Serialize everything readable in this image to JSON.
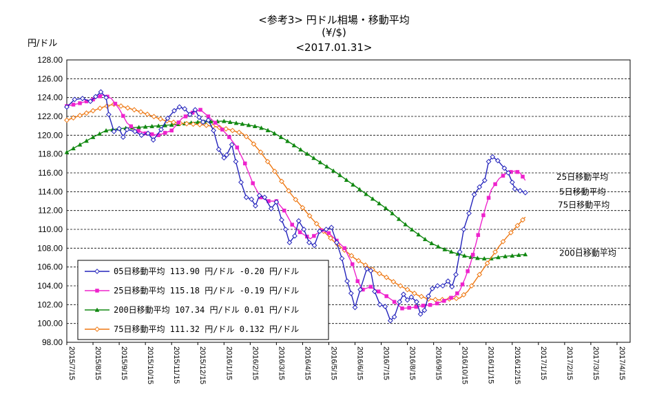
{
  "chart_data": {
    "type": "line",
    "title": "<参考3> 円ドル相場・移動平均",
    "subtitle": "(¥/$)",
    "date": "<2017.01.31>",
    "ylabel": "円/ドル",
    "ylim": [
      98,
      128
    ],
    "yticks": [
      "98.00",
      "100.00",
      "102.00",
      "104.00",
      "106.00",
      "108.00",
      "110.00",
      "112.00",
      "114.00",
      "116.00",
      "118.00",
      "120.00",
      "122.00",
      "124.00",
      "126.00",
      "128.00"
    ],
    "categories": [
      "2015/7/15",
      "2015/8/15",
      "2015/9/15",
      "2015/10/15",
      "2015/11/15",
      "2015/12/15",
      "2016/1/15",
      "2016/2/15",
      "2016/3/15",
      "2016/4/15",
      "2016/5/15",
      "2016/6/15",
      "2016/7/15",
      "2016/8/15",
      "2016/9/15",
      "2016/10/15",
      "2016/11/15",
      "2016/12/15",
      "2017/1/15",
      "2017/2/15",
      "2017/3/15",
      "2017/4/15"
    ],
    "grid": true,
    "series": [
      {
        "name": "5日移動平均",
        "color": "#2222bb",
        "marker": "diamond",
        "points": [
          [
            0,
            123.0
          ],
          [
            0.3,
            123.8
          ],
          [
            0.6,
            123.9
          ],
          [
            0.9,
            123.6
          ],
          [
            1.1,
            124.1
          ],
          [
            1.3,
            124.6
          ],
          [
            1.5,
            124.0
          ],
          [
            1.6,
            122.2
          ],
          [
            1.8,
            120.4
          ],
          [
            2.0,
            120.7
          ],
          [
            2.15,
            119.8
          ],
          [
            2.3,
            120.6
          ],
          [
            2.6,
            120.4
          ],
          [
            2.85,
            120.0
          ],
          [
            3.1,
            120.2
          ],
          [
            3.3,
            119.5
          ],
          [
            3.6,
            120.6
          ],
          [
            3.85,
            121.8
          ],
          [
            4.1,
            122.6
          ],
          [
            4.3,
            123.0
          ],
          [
            4.5,
            122.8
          ],
          [
            4.7,
            122.2
          ],
          [
            4.9,
            122.7
          ],
          [
            5.05,
            121.9
          ],
          [
            5.2,
            121.4
          ],
          [
            5.4,
            121.6
          ],
          [
            5.6,
            120.5
          ],
          [
            5.8,
            118.5
          ],
          [
            6.0,
            117.6
          ],
          [
            6.1,
            117.9
          ],
          [
            6.3,
            119.0
          ],
          [
            6.45,
            117.2
          ],
          [
            6.65,
            115.0
          ],
          [
            6.85,
            113.4
          ],
          [
            7.05,
            113.2
          ],
          [
            7.2,
            112.5
          ],
          [
            7.35,
            113.6
          ],
          [
            7.55,
            113.4
          ],
          [
            7.8,
            112.2
          ],
          [
            8.0,
            112.9
          ],
          [
            8.2,
            111.0
          ],
          [
            8.35,
            110.0
          ],
          [
            8.5,
            108.6
          ],
          [
            8.7,
            109.3
          ],
          [
            8.85,
            110.9
          ],
          [
            9.05,
            110.0
          ],
          [
            9.25,
            108.6
          ],
          [
            9.45,
            108.3
          ],
          [
            9.65,
            109.8
          ],
          [
            9.9,
            110.0
          ],
          [
            10.1,
            110.2
          ],
          [
            10.3,
            108.6
          ],
          [
            10.5,
            106.9
          ],
          [
            10.7,
            104.5
          ],
          [
            10.85,
            103.2
          ],
          [
            11.0,
            101.7
          ],
          [
            11.2,
            103.6
          ],
          [
            11.45,
            105.8
          ],
          [
            11.6,
            105.6
          ],
          [
            11.75,
            103.4
          ],
          [
            11.95,
            102.0
          ],
          [
            12.15,
            101.8
          ],
          [
            12.35,
            100.3
          ],
          [
            12.5,
            100.7
          ],
          [
            12.7,
            102.3
          ],
          [
            12.85,
            103.1
          ],
          [
            13.0,
            102.5
          ],
          [
            13.15,
            102.8
          ],
          [
            13.35,
            102.3
          ],
          [
            13.5,
            101.0
          ],
          [
            13.65,
            101.4
          ],
          [
            13.8,
            102.9
          ],
          [
            13.95,
            103.7
          ],
          [
            14.15,
            104.0
          ],
          [
            14.35,
            104.0
          ],
          [
            14.55,
            104.5
          ],
          [
            14.7,
            103.9
          ],
          [
            14.85,
            105.2
          ],
          [
            15.0,
            107.6
          ],
          [
            15.15,
            110.0
          ],
          [
            15.35,
            111.7
          ],
          [
            15.55,
            113.7
          ],
          [
            15.75,
            114.5
          ],
          [
            15.95,
            115.2
          ],
          [
            16.1,
            117.2
          ],
          [
            16.25,
            117.7
          ],
          [
            16.45,
            117.3
          ],
          [
            16.7,
            116.5
          ],
          [
            16.85,
            116.0
          ],
          [
            17.0,
            115.0
          ],
          [
            17.1,
            114.3
          ],
          [
            17.3,
            114.1
          ],
          [
            17.5,
            113.9
          ]
        ]
      },
      {
        "name": "25日移動平均",
        "color": "#ee22cc",
        "marker": "square",
        "points": [
          [
            0,
            123.1
          ],
          [
            0.5,
            123.4
          ],
          [
            1.0,
            123.8
          ],
          [
            1.4,
            124.3
          ],
          [
            1.7,
            123.9
          ],
          [
            2.0,
            122.8
          ],
          [
            2.3,
            121.3
          ],
          [
            2.6,
            120.6
          ],
          [
            3.0,
            120.2
          ],
          [
            3.5,
            120.0
          ],
          [
            4.0,
            120.5
          ],
          [
            4.4,
            121.8
          ],
          [
            4.8,
            122.4
          ],
          [
            5.1,
            122.7
          ],
          [
            5.4,
            122.0
          ],
          [
            5.8,
            121.0
          ],
          [
            6.2,
            119.8
          ],
          [
            6.5,
            118.7
          ],
          [
            6.8,
            117.0
          ],
          [
            7.1,
            114.9
          ],
          [
            7.4,
            113.4
          ],
          [
            7.7,
            113.0
          ],
          [
            8.0,
            113.0
          ],
          [
            8.3,
            112.0
          ],
          [
            8.6,
            110.5
          ],
          [
            8.9,
            109.7
          ],
          [
            9.3,
            109.0
          ],
          [
            9.7,
            109.9
          ],
          [
            10.0,
            109.6
          ],
          [
            10.3,
            108.8
          ],
          [
            10.6,
            108.0
          ],
          [
            10.9,
            106.3
          ],
          [
            11.1,
            104.5
          ],
          [
            11.3,
            103.6
          ],
          [
            11.6,
            103.9
          ],
          [
            11.9,
            103.4
          ],
          [
            12.2,
            102.9
          ],
          [
            12.5,
            102.3
          ],
          [
            12.8,
            101.6
          ],
          [
            13.2,
            101.7
          ],
          [
            13.6,
            101.9
          ],
          [
            14.0,
            102.0
          ],
          [
            14.4,
            102.4
          ],
          [
            14.8,
            102.9
          ],
          [
            15.0,
            103.5
          ],
          [
            15.2,
            104.8
          ],
          [
            15.4,
            106.3
          ],
          [
            15.6,
            108.3
          ],
          [
            15.8,
            110.5
          ],
          [
            16.0,
            112.5
          ],
          [
            16.2,
            114.2
          ],
          [
            16.5,
            115.4
          ],
          [
            16.8,
            116.0
          ],
          [
            17.1,
            116.2
          ],
          [
            17.3,
            116.0
          ],
          [
            17.5,
            115.2
          ]
        ]
      },
      {
        "name": "200日移動平均",
        "color": "#118811",
        "marker": "triangle",
        "points": [
          [
            0,
            118.2
          ],
          [
            0.5,
            119.0
          ],
          [
            1.0,
            119.8
          ],
          [
            1.5,
            120.5
          ],
          [
            2.0,
            120.7
          ],
          [
            3.0,
            120.9
          ],
          [
            4.0,
            121.1
          ],
          [
            5.0,
            121.4
          ],
          [
            6.0,
            121.5
          ],
          [
            6.7,
            121.2
          ],
          [
            7.3,
            120.9
          ],
          [
            7.8,
            120.4
          ],
          [
            8.3,
            119.6
          ],
          [
            8.8,
            118.7
          ],
          [
            9.3,
            117.8
          ],
          [
            9.8,
            116.9
          ],
          [
            10.3,
            116.0
          ],
          [
            10.8,
            115.0
          ],
          [
            11.3,
            114.0
          ],
          [
            11.8,
            113.0
          ],
          [
            12.3,
            112.0
          ],
          [
            12.8,
            110.8
          ],
          [
            13.3,
            109.7
          ],
          [
            13.8,
            108.7
          ],
          [
            14.3,
            108.0
          ],
          [
            14.8,
            107.5
          ],
          [
            15.3,
            107.1
          ],
          [
            15.8,
            106.9
          ],
          [
            16.2,
            106.9
          ],
          [
            16.6,
            107.1
          ],
          [
            17.0,
            107.2
          ],
          [
            17.5,
            107.34
          ]
        ]
      },
      {
        "name": "75日移動平均",
        "color": "#ee7711",
        "marker": "diamond",
        "points": [
          [
            0,
            121.6
          ],
          [
            0.5,
            122.1
          ],
          [
            1.0,
            122.6
          ],
          [
            1.4,
            123.0
          ],
          [
            1.8,
            123.3
          ],
          [
            2.2,
            123.0
          ],
          [
            2.7,
            122.6
          ],
          [
            3.2,
            122.1
          ],
          [
            3.7,
            121.6
          ],
          [
            4.2,
            121.3
          ],
          [
            4.7,
            121.2
          ],
          [
            5.2,
            121.1
          ],
          [
            5.7,
            120.9
          ],
          [
            6.2,
            120.6
          ],
          [
            6.7,
            120.2
          ],
          [
            7.0,
            119.5
          ],
          [
            7.4,
            118.2
          ],
          [
            7.8,
            116.7
          ],
          [
            8.2,
            115.1
          ],
          [
            8.6,
            113.6
          ],
          [
            9.0,
            112.3
          ],
          [
            9.4,
            111.0
          ],
          [
            9.8,
            109.8
          ],
          [
            10.2,
            108.7
          ],
          [
            10.6,
            107.8
          ],
          [
            11.0,
            106.9
          ],
          [
            11.4,
            106.2
          ],
          [
            11.8,
            105.5
          ],
          [
            12.2,
            104.9
          ],
          [
            12.6,
            104.2
          ],
          [
            13.0,
            103.6
          ],
          [
            13.4,
            103.0
          ],
          [
            13.8,
            102.6
          ],
          [
            14.2,
            102.5
          ],
          [
            14.6,
            102.6
          ],
          [
            15.0,
            102.7
          ],
          [
            15.3,
            103.4
          ],
          [
            15.6,
            104.6
          ],
          [
            15.9,
            105.8
          ],
          [
            16.2,
            107.0
          ],
          [
            16.5,
            108.2
          ],
          [
            16.8,
            109.2
          ],
          [
            17.1,
            110.1
          ],
          [
            17.3,
            110.7
          ],
          [
            17.5,
            111.3
          ]
        ]
      }
    ],
    "end_labels": [
      "25日移動平均",
      "5日移動平均",
      "75日移動平均",
      "200日移動平均"
    ],
    "legend_position": "bottom-left",
    "legend": [
      {
        "text": "05日移動平均 113.90  円/ドル -0.20  円/ドル",
        "color": "#2222bb",
        "marker": "diamond"
      },
      {
        "text": "25日移動平均 115.18  円/ドル -0.19  円/ドル",
        "color": "#ee22cc",
        "marker": "square"
      },
      {
        "text": "200日移動平均 107.34  円/ドル 0.01  円/ドル",
        "color": "#118811",
        "marker": "triangle"
      },
      {
        "text": "75日移動平均 111.32  円/ドル 0.132  円/ドル",
        "color": "#ee7711",
        "marker": "diamond"
      }
    ]
  }
}
